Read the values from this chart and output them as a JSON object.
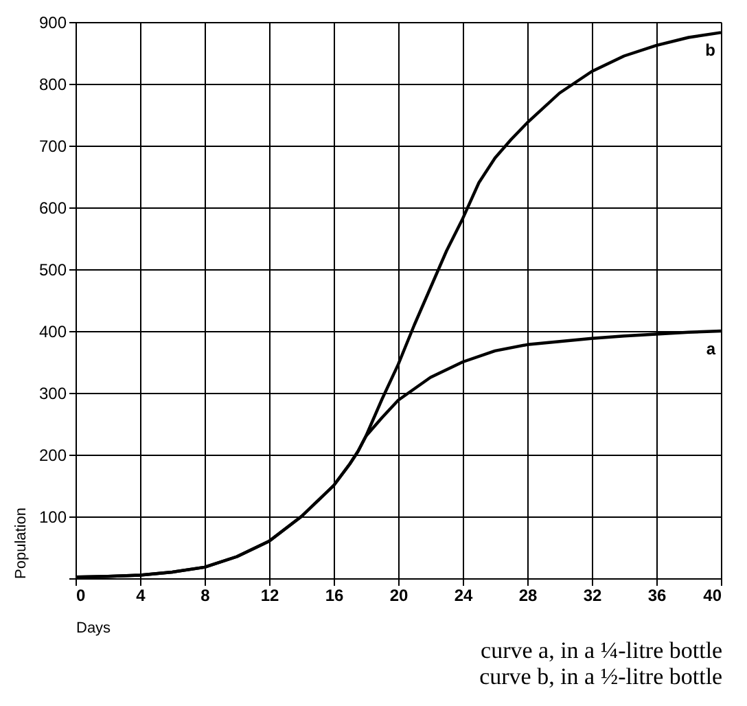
{
  "chart_data": {
    "type": "line",
    "xlabel": "Days",
    "ylabel": "Population",
    "xlim": [
      0,
      40
    ],
    "xticks": [
      0,
      4,
      8,
      12,
      16,
      20,
      24,
      28,
      32,
      36,
      40
    ],
    "ylim": [
      0,
      900
    ],
    "yticks": [
      {
        "value": 0,
        "label": null
      },
      100,
      200,
      300,
      400,
      500,
      600,
      700,
      800,
      900
    ],
    "grid": true,
    "marker": "none",
    "line_style": "solid",
    "series": [
      {
        "name": "a",
        "color": "#000000",
        "x": [
          0,
          2,
          4,
          6,
          8,
          10,
          12,
          14,
          16,
          17,
          17.5,
          18,
          19,
          20,
          22,
          24,
          26,
          28,
          30,
          32,
          34,
          36,
          38,
          40
        ],
        "values": [
          2,
          3,
          5,
          10,
          18,
          35,
          60,
          100,
          150,
          185,
          205,
          230,
          260,
          288,
          325,
          350,
          368,
          378,
          383,
          388,
          392,
          395,
          398,
          400
        ]
      },
      {
        "name": "b",
        "color": "#000000",
        "x": [
          0,
          2,
          4,
          6,
          8,
          10,
          12,
          14,
          16,
          17,
          17.5,
          18,
          19,
          20,
          21,
          22,
          23,
          24,
          25,
          26,
          27,
          28,
          30,
          32,
          34,
          36,
          38,
          40
        ],
        "values": [
          2,
          3,
          5,
          10,
          18,
          35,
          60,
          100,
          150,
          185,
          205,
          230,
          290,
          346,
          410,
          470,
          530,
          582,
          640,
          680,
          710,
          737,
          785,
          820,
          845,
          862,
          875,
          883
        ]
      }
    ],
    "annotations": [
      "curve a, in a ¼-litre bottle",
      "curve b, in a ½-litre bottle"
    ]
  }
}
